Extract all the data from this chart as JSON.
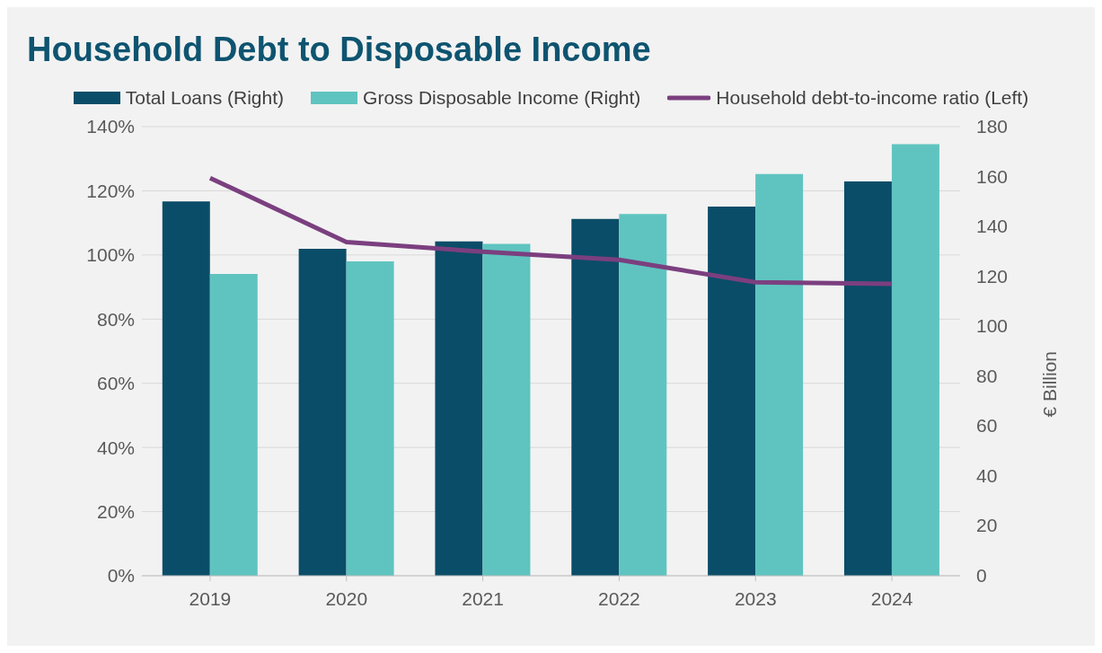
{
  "chart_data": {
    "type": "bar",
    "title": "Household Debt to Disposable Income",
    "y2label": "€ Billion",
    "categories": [
      "2019",
      "2020",
      "2021",
      "2022",
      "2023",
      "2024"
    ],
    "series": [
      {
        "name": "Total Loans (Right)",
        "axis": "y2",
        "color": "#0a4d68",
        "values": [
          150,
          131,
          134,
          143,
          148,
          158
        ]
      },
      {
        "name": "Gross Disposable Income (Right)",
        "axis": "y2",
        "color": "#5fc4c0",
        "values": [
          121,
          126,
          133,
          145,
          161,
          173
        ]
      },
      {
        "name": "Household debt-to-income ratio (Left)",
        "type": "line",
        "color": "#7b3f7f",
        "values": [
          124,
          104,
          101,
          98.5,
          91.5,
          91
        ]
      }
    ],
    "ylim": [
      0,
      140
    ],
    "yticks": [
      {
        "value": 0,
        "label": "0%"
      },
      {
        "value": 20,
        "label": "20%"
      },
      {
        "value": 40,
        "label": "40%"
      },
      {
        "value": 60,
        "label": "60%"
      },
      {
        "value": 80,
        "label": "80%"
      },
      {
        "value": 100,
        "label": "100%"
      },
      {
        "value": 120,
        "label": "120%"
      },
      {
        "value": 140,
        "label": "140%"
      }
    ],
    "y2lim": [
      0,
      180
    ],
    "y2ticks": [
      0,
      20,
      40,
      60,
      80,
      100,
      120,
      140,
      160,
      180
    ],
    "grid": "y",
    "legend": "top",
    "marker": "none",
    "line_style": "solid"
  }
}
